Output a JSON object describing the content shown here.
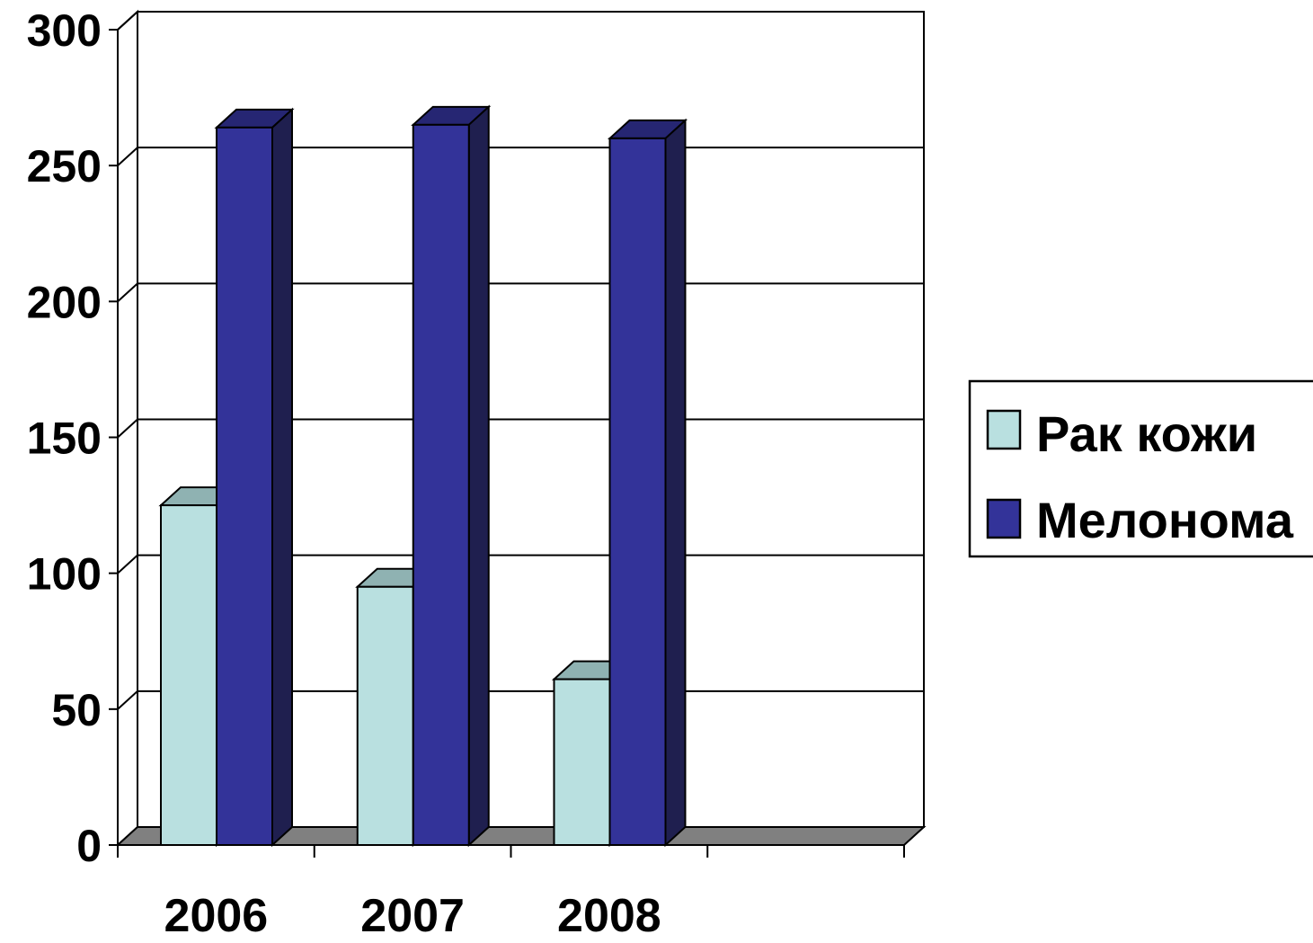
{
  "chart_data": {
    "type": "bar",
    "title": "",
    "xlabel": "",
    "ylabel": "",
    "categories": [
      "2006",
      "2007",
      "2008"
    ],
    "series": [
      {
        "name": "Рак кожи",
        "values": [
          125,
          95,
          61
        ]
      },
      {
        "name": "Мелонома",
        "values": [
          264,
          265,
          260
        ]
      }
    ],
    "ylim": [
      0,
      300
    ],
    "yticks": [
      0,
      50,
      100,
      150,
      200,
      250,
      300
    ],
    "grid": true,
    "legend_position": "right",
    "colors": {
      "series": [
        "#b9e0e0",
        "#333399"
      ],
      "series_top": [
        "#8fb2b2",
        "#262673"
      ],
      "series_side": [
        "#8fb2b2",
        "#1f1f4f"
      ],
      "floor": "#808080"
    }
  }
}
